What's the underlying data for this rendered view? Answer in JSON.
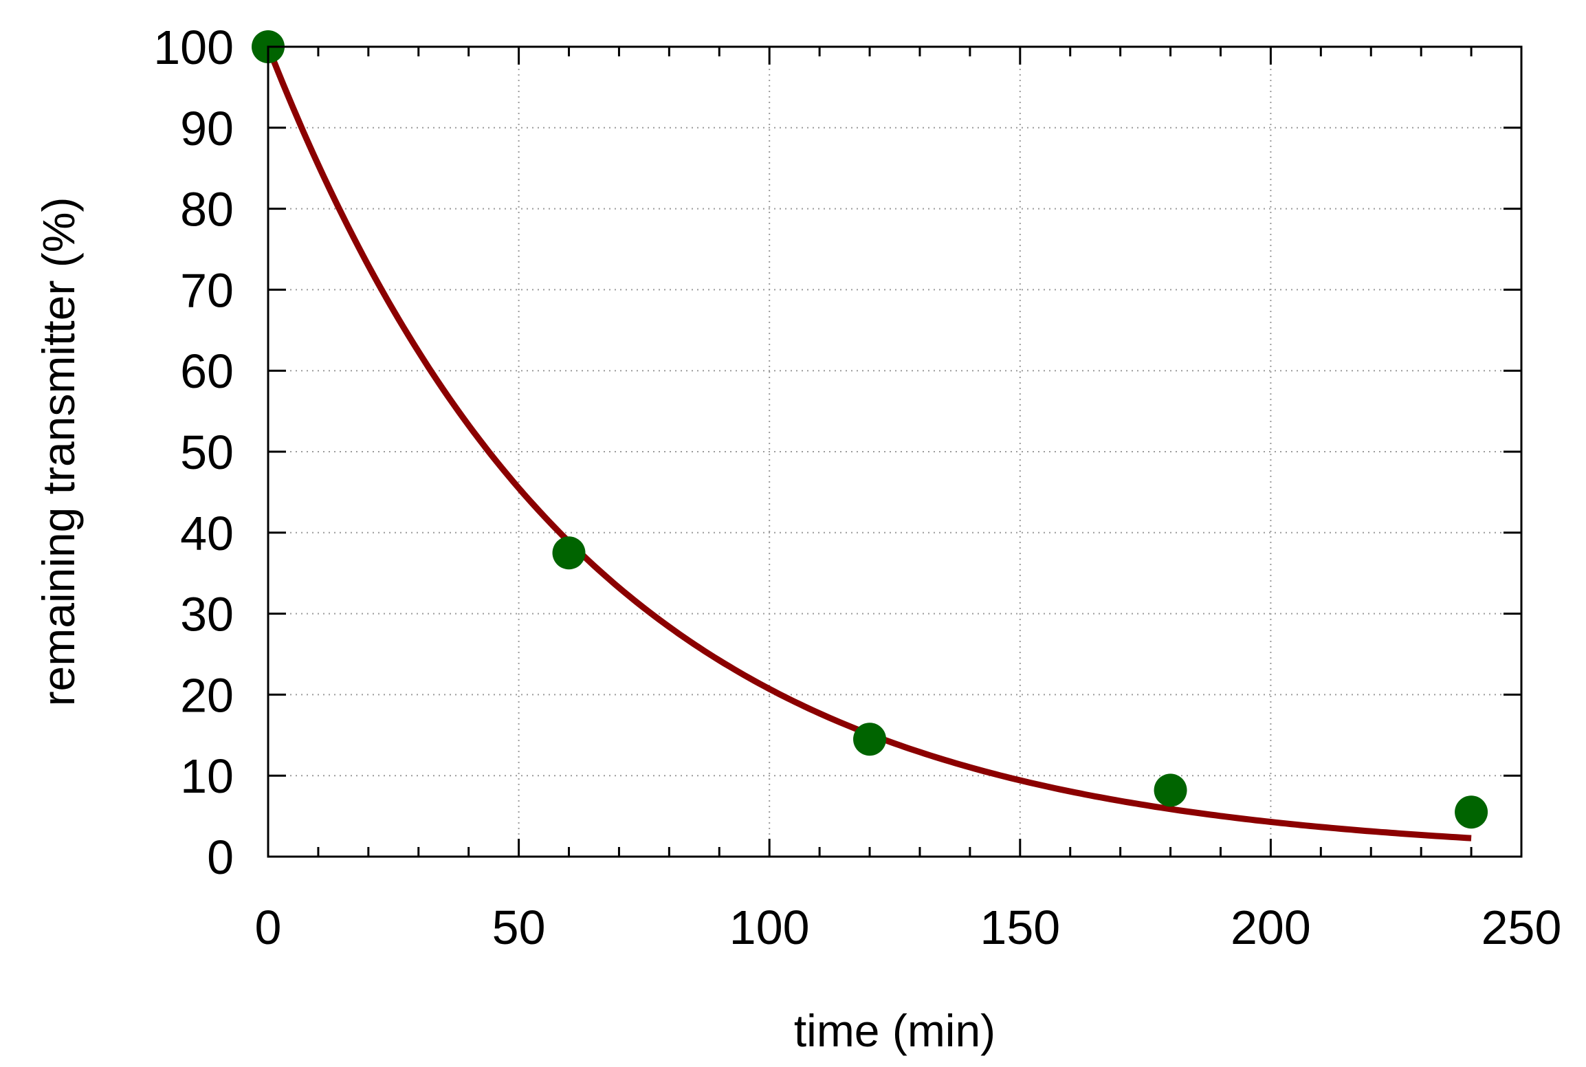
{
  "chart_data": {
    "type": "scatter",
    "xlabel": "time (min)",
    "ylabel": "remaining transmitter (%)",
    "xlim": [
      0,
      250
    ],
    "ylim": [
      0,
      100
    ],
    "x_ticks": [
      0,
      50,
      100,
      150,
      200,
      250
    ],
    "y_ticks": [
      0,
      10,
      20,
      30,
      40,
      50,
      60,
      70,
      80,
      90,
      100
    ],
    "x_minor_step": 10,
    "grid": true,
    "series": [
      {
        "kind": "points",
        "color": "#006400",
        "x": [
          0,
          60,
          120,
          180,
          240
        ],
        "y": [
          100,
          37.5,
          14.5,
          8.2,
          5.5
        ]
      },
      {
        "kind": "fit-line",
        "color": "#8b0000",
        "function": "exponential-decay",
        "amplitude": 100,
        "time_constant_min": 63.5,
        "x_range": [
          0,
          240
        ]
      }
    ]
  }
}
